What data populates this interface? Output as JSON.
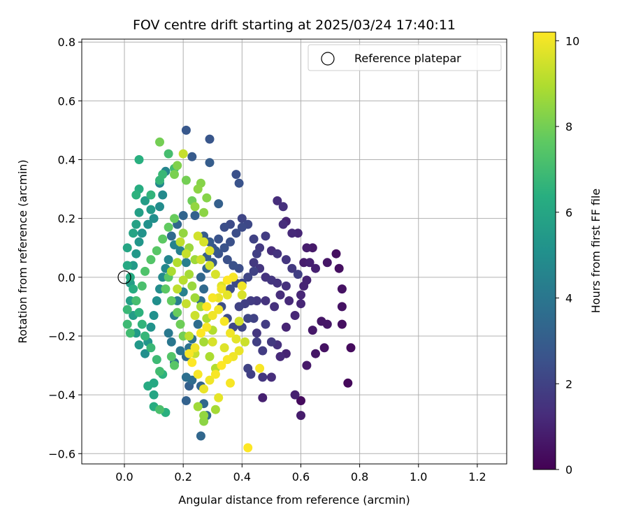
{
  "chart_data": {
    "type": "scatter",
    "title": "FOV centre drift starting at 2025/03/24 17:40:11",
    "xlabel": "Angular distance from reference (arcmin)",
    "ylabel": "Rotation from reference (arcmin)",
    "xlim": [
      -0.145,
      1.3
    ],
    "ylim": [
      -0.635,
      0.81
    ],
    "xticks": [
      0.0,
      0.2,
      0.4,
      0.6,
      0.8,
      1.0,
      1.2
    ],
    "yticks": [
      -0.6,
      -0.4,
      -0.2,
      0.0,
      0.2,
      0.4,
      0.6,
      0.8
    ],
    "grid": true,
    "colormap": "viridis",
    "colorbar": {
      "label": "Hours from first FF file",
      "range": [
        0,
        10.2
      ],
      "ticks": [
        0,
        2,
        4,
        6,
        8,
        10
      ]
    },
    "legend": {
      "placement": "top-right",
      "entries": [
        {
          "label": "Reference platepar",
          "marker": "open-circle"
        }
      ]
    },
    "reference_point": {
      "x": 0.0,
      "y": 0.0
    },
    "columns": [
      "x",
      "y",
      "hours"
    ],
    "points": [
      [
        0.76,
        -0.36,
        0.2
      ],
      [
        0.77,
        -0.24,
        0.3
      ],
      [
        0.72,
        0.08,
        0.4
      ],
      [
        0.73,
        0.03,
        0.4
      ],
      [
        0.74,
        -0.04,
        0.5
      ],
      [
        0.74,
        -0.1,
        0.5
      ],
      [
        0.74,
        -0.16,
        0.4
      ],
      [
        0.68,
        -0.24,
        0.5
      ],
      [
        0.69,
        -0.16,
        0.6
      ],
      [
        0.67,
        -0.15,
        0.6
      ],
      [
        0.69,
        0.05,
        0.6
      ],
      [
        0.65,
        -0.26,
        0.6
      ],
      [
        0.64,
        -0.18,
        0.7
      ],
      [
        0.62,
        -0.3,
        0.7
      ],
      [
        0.6,
        -0.42,
        0.3
      ],
      [
        0.6,
        -0.47,
        0.8
      ],
      [
        0.58,
        -0.4,
        0.9
      ],
      [
        0.64,
        0.1,
        0.7
      ],
      [
        0.62,
        0.1,
        0.8
      ],
      [
        0.61,
        0.05,
        0.8
      ],
      [
        0.63,
        0.05,
        0.9
      ],
      [
        0.65,
        0.03,
        0.9
      ],
      [
        0.62,
        -0.01,
        1.0
      ],
      [
        0.61,
        -0.03,
        1.0
      ],
      [
        0.6,
        -0.06,
        1.1
      ],
      [
        0.6,
        -0.09,
        1.1
      ],
      [
        0.59,
        0.15,
        1.1
      ],
      [
        0.57,
        0.15,
        1.2
      ],
      [
        0.55,
        0.19,
        1.0
      ],
      [
        0.54,
        0.18,
        1.3
      ],
      [
        0.52,
        0.26,
        1.3
      ],
      [
        0.54,
        0.24,
        1.4
      ],
      [
        0.53,
        -0.27,
        1.2
      ],
      [
        0.55,
        -0.26,
        1.0
      ],
      [
        0.52,
        -0.23,
        1.4
      ],
      [
        0.5,
        -0.34,
        1.3
      ],
      [
        0.47,
        -0.34,
        1.6
      ],
      [
        0.47,
        -0.41,
        0.9
      ],
      [
        0.55,
        -0.17,
        1.0
      ],
      [
        0.58,
        -0.13,
        1.1
      ],
      [
        0.56,
        -0.08,
        1.2
      ],
      [
        0.53,
        -0.06,
        1.3
      ],
      [
        0.55,
        -0.03,
        1.4
      ],
      [
        0.52,
        -0.02,
        1.5
      ],
      [
        0.5,
        -0.01,
        1.6
      ],
      [
        0.48,
        0.0,
        1.5
      ],
      [
        0.46,
        0.03,
        1.6
      ],
      [
        0.44,
        0.05,
        1.7
      ],
      [
        0.46,
        0.1,
        1.7
      ],
      [
        0.48,
        0.14,
        1.8
      ],
      [
        0.5,
        0.09,
        1.3
      ],
      [
        0.52,
        0.08,
        1.5
      ],
      [
        0.55,
        0.06,
        1.6
      ],
      [
        0.57,
        0.03,
        1.7
      ],
      [
        0.59,
        0.01,
        1.9
      ],
      [
        0.51,
        -0.1,
        1.4
      ],
      [
        0.48,
        -0.08,
        1.5
      ],
      [
        0.45,
        -0.08,
        1.7
      ],
      [
        0.43,
        -0.08,
        1.8
      ],
      [
        0.41,
        -0.09,
        1.9
      ],
      [
        0.39,
        -0.1,
        2.0
      ],
      [
        0.45,
        -0.19,
        1.6
      ],
      [
        0.48,
        -0.16,
        1.8
      ],
      [
        0.5,
        -0.22,
        1.7
      ],
      [
        0.47,
        -0.25,
        1.8
      ],
      [
        0.45,
        -0.22,
        1.9
      ],
      [
        0.42,
        -0.31,
        2.0
      ],
      [
        0.43,
        -0.33,
        1.9
      ],
      [
        0.44,
        -0.14,
        2.0
      ],
      [
        0.42,
        -0.14,
        2.1
      ],
      [
        0.4,
        -0.17,
        2.1
      ],
      [
        0.37,
        -0.17,
        2.2
      ],
      [
        0.35,
        -0.14,
        2.3
      ],
      [
        0.33,
        -0.1,
        2.4
      ],
      [
        0.36,
        -0.04,
        2.4
      ],
      [
        0.38,
        -0.02,
        2.3
      ],
      [
        0.4,
        -0.02,
        2.2
      ],
      [
        0.42,
        0.0,
        2.1
      ],
      [
        0.44,
        0.02,
        2.0
      ],
      [
        0.39,
        0.03,
        2.4
      ],
      [
        0.37,
        0.04,
        2.5
      ],
      [
        0.35,
        0.06,
        2.5
      ],
      [
        0.32,
        0.08,
        2.6
      ],
      [
        0.3,
        0.1,
        2.7
      ],
      [
        0.34,
        0.1,
        2.6
      ],
      [
        0.36,
        0.12,
        2.5
      ],
      [
        0.38,
        0.15,
        2.4
      ],
      [
        0.4,
        0.17,
        2.3
      ],
      [
        0.42,
        0.18,
        2.2
      ],
      [
        0.4,
        0.2,
        2.1
      ],
      [
        0.44,
        0.13,
        2.0
      ],
      [
        0.45,
        0.08,
        1.9
      ],
      [
        0.36,
        0.18,
        2.3
      ],
      [
        0.34,
        0.17,
        2.4
      ],
      [
        0.32,
        0.13,
        2.6
      ],
      [
        0.31,
        0.09,
        2.8
      ],
      [
        0.29,
        0.12,
        2.9
      ],
      [
        0.27,
        0.14,
        3.0
      ],
      [
        0.28,
        0.07,
        3.0
      ],
      [
        0.3,
        0.05,
        2.9
      ],
      [
        0.38,
        0.35,
        2.5
      ],
      [
        0.39,
        0.32,
        2.6
      ],
      [
        0.29,
        0.47,
        2.7
      ],
      [
        0.21,
        0.5,
        2.8
      ],
      [
        0.23,
        0.41,
        2.9
      ],
      [
        0.29,
        0.39,
        3.0
      ],
      [
        0.32,
        0.25,
        3.1
      ],
      [
        0.24,
        0.21,
        3.2
      ],
      [
        0.2,
        0.21,
        3.3
      ],
      [
        0.18,
        0.18,
        3.4
      ],
      [
        0.16,
        0.14,
        3.5
      ],
      [
        0.28,
        0.03,
        3.3
      ],
      [
        0.26,
        0.0,
        3.4
      ],
      [
        0.27,
        -0.04,
        3.5
      ],
      [
        0.26,
        -0.08,
        3.6
      ],
      [
        0.25,
        -0.16,
        3.6
      ],
      [
        0.23,
        -0.21,
        3.7
      ],
      [
        0.22,
        -0.24,
        3.8
      ],
      [
        0.21,
        -0.27,
        3.5
      ],
      [
        0.19,
        -0.25,
        3.9
      ],
      [
        0.22,
        -0.37,
        3.1
      ],
      [
        0.21,
        -0.42,
        3.2
      ],
      [
        0.26,
        -0.37,
        3.3
      ],
      [
        0.27,
        -0.43,
        3.4
      ],
      [
        0.26,
        -0.54,
        3.4
      ],
      [
        0.28,
        -0.47,
        3.5
      ],
      [
        0.23,
        -0.35,
        3.6
      ],
      [
        0.21,
        -0.34,
        3.7
      ],
      [
        0.17,
        -0.29,
        3.8
      ],
      [
        0.16,
        -0.22,
        4.0
      ],
      [
        0.15,
        -0.19,
        4.1
      ],
      [
        0.17,
        -0.13,
        4.2
      ],
      [
        0.18,
        -0.08,
        4.3
      ],
      [
        0.2,
        -0.05,
        4.4
      ],
      [
        0.21,
        0.05,
        4.3
      ],
      [
        0.19,
        0.09,
        4.4
      ],
      [
        0.17,
        0.11,
        4.5
      ],
      [
        0.15,
        0.06,
        4.6
      ],
      [
        0.14,
        0.03,
        4.7
      ],
      [
        0.13,
        0.0,
        4.8
      ],
      [
        0.12,
        -0.04,
        4.9
      ],
      [
        0.11,
        -0.08,
        5.0
      ],
      [
        0.1,
        -0.13,
        5.1
      ],
      [
        0.09,
        -0.17,
        5.2
      ],
      [
        0.08,
        -0.22,
        5.3
      ],
      [
        0.07,
        -0.26,
        5.0
      ],
      [
        0.05,
        -0.23,
        5.4
      ],
      [
        0.04,
        -0.19,
        5.5
      ],
      [
        0.03,
        -0.13,
        5.6
      ],
      [
        0.02,
        -0.08,
        5.7
      ],
      [
        0.02,
        -0.02,
        5.6
      ],
      [
        0.03,
        0.04,
        5.5
      ],
      [
        0.04,
        0.08,
        5.4
      ],
      [
        0.05,
        0.12,
        5.3
      ],
      [
        0.06,
        0.15,
        5.2
      ],
      [
        0.08,
        0.18,
        5.1
      ],
      [
        0.1,
        0.2,
        5.0
      ],
      [
        0.12,
        0.24,
        4.9
      ],
      [
        0.13,
        0.28,
        4.8
      ],
      [
        0.12,
        0.32,
        4.7
      ],
      [
        0.14,
        0.36,
        4.6
      ],
      [
        0.09,
        0.23,
        5.5
      ],
      [
        0.07,
        0.26,
        5.6
      ],
      [
        0.05,
        0.22,
        5.7
      ],
      [
        0.04,
        0.18,
        5.8
      ],
      [
        0.03,
        0.15,
        5.9
      ],
      [
        0.01,
        0.1,
        6.0
      ],
      [
        0.01,
        0.04,
        6.1
      ],
      [
        0.02,
        0.0,
        6.2
      ],
      [
        0.03,
        -0.04,
        6.3
      ],
      [
        0.04,
        -0.08,
        6.4
      ],
      [
        0.05,
        -0.12,
        6.5
      ],
      [
        0.06,
        -0.16,
        6.6
      ],
      [
        0.07,
        -0.2,
        6.7
      ],
      [
        0.09,
        -0.24,
        6.8
      ],
      [
        0.11,
        -0.28,
        6.9
      ],
      [
        0.12,
        -0.32,
        7.0
      ],
      [
        0.1,
        -0.36,
        6.1
      ],
      [
        0.08,
        -0.37,
        6.2
      ],
      [
        0.1,
        -0.4,
        6.0
      ],
      [
        0.1,
        -0.44,
        6.3
      ],
      [
        0.14,
        -0.46,
        6.4
      ],
      [
        0.13,
        -0.33,
        6.5
      ],
      [
        0.05,
        0.4,
        6.4
      ],
      [
        0.05,
        0.3,
        6.3
      ],
      [
        0.04,
        0.28,
        6.5
      ],
      [
        0.09,
        0.28,
        6.6
      ],
      [
        0.12,
        0.33,
        6.7
      ],
      [
        0.13,
        0.35,
        6.8
      ],
      [
        0.15,
        0.42,
        7.1
      ],
      [
        0.17,
        0.37,
        7.0
      ],
      [
        0.01,
        -0.11,
        6.8
      ],
      [
        0.01,
        -0.16,
        6.9
      ],
      [
        0.02,
        -0.19,
        7.0
      ],
      [
        0.04,
        -0.08,
        7.1
      ],
      [
        0.06,
        -0.03,
        7.2
      ],
      [
        0.07,
        0.02,
        7.3
      ],
      [
        0.09,
        0.06,
        7.4
      ],
      [
        0.11,
        0.09,
        7.5
      ],
      [
        0.13,
        0.13,
        7.6
      ],
      [
        0.15,
        0.17,
        7.7
      ],
      [
        0.17,
        0.2,
        7.8
      ],
      [
        0.15,
        0.0,
        7.5
      ],
      [
        0.14,
        -0.04,
        7.6
      ],
      [
        0.16,
        -0.08,
        7.7
      ],
      [
        0.18,
        -0.12,
        7.8
      ],
      [
        0.19,
        -0.16,
        7.9
      ],
      [
        0.2,
        -0.2,
        8.0
      ],
      [
        0.16,
        -0.27,
        7.4
      ],
      [
        0.17,
        -0.3,
        7.5
      ],
      [
        0.12,
        -0.45,
        7.2
      ],
      [
        0.23,
        0.26,
        7.9
      ],
      [
        0.21,
        0.33,
        8.0
      ],
      [
        0.17,
        0.35,
        8.1
      ],
      [
        0.18,
        0.38,
        8.2
      ],
      [
        0.12,
        0.46,
        8.0
      ],
      [
        0.26,
        0.32,
        8.3
      ],
      [
        0.25,
        0.3,
        8.4
      ],
      [
        0.24,
        0.24,
        8.5
      ],
      [
        0.27,
        0.22,
        8.4
      ],
      [
        0.28,
        0.27,
        8.3
      ],
      [
        0.2,
        0.15,
        8.5
      ],
      [
        0.22,
        0.1,
        8.6
      ],
      [
        0.24,
        0.06,
        8.7
      ],
      [
        0.22,
        0.01,
        8.8
      ],
      [
        0.23,
        -0.03,
        8.6
      ],
      [
        0.24,
        -0.07,
        8.7
      ],
      [
        0.26,
        -0.1,
        8.8
      ],
      [
        0.28,
        -0.14,
        8.9
      ],
      [
        0.3,
        -0.18,
        9.0
      ],
      [
        0.27,
        -0.22,
        8.8
      ],
      [
        0.29,
        -0.27,
        8.9
      ],
      [
        0.31,
        -0.31,
        9.0
      ],
      [
        0.27,
        -0.47,
        8.5
      ],
      [
        0.25,
        -0.44,
        8.7
      ],
      [
        0.31,
        -0.45,
        8.8
      ],
      [
        0.27,
        -0.49,
        8.4
      ],
      [
        0.22,
        -0.2,
        9.2
      ],
      [
        0.24,
        -0.26,
        9.3
      ],
      [
        0.2,
        0.42,
        9.3
      ],
      [
        0.19,
        0.12,
        9.2
      ],
      [
        0.21,
        0.08,
        9.3
      ],
      [
        0.26,
        0.06,
        9.4
      ],
      [
        0.29,
        0.04,
        9.5
      ],
      [
        0.31,
        0.01,
        9.6
      ],
      [
        0.33,
        -0.03,
        9.7
      ],
      [
        0.35,
        -0.06,
        9.8
      ],
      [
        0.32,
        -0.07,
        9.9
      ],
      [
        0.32,
        -0.11,
        10.0
      ],
      [
        0.34,
        -0.15,
        10.1
      ],
      [
        0.36,
        -0.19,
        10.0
      ],
      [
        0.38,
        -0.21,
        9.8
      ],
      [
        0.39,
        -0.25,
        9.9
      ],
      [
        0.37,
        -0.27,
        10.0
      ],
      [
        0.35,
        -0.28,
        10.1
      ],
      [
        0.33,
        -0.3,
        10.2
      ],
      [
        0.31,
        -0.33,
        10.1
      ],
      [
        0.29,
        -0.35,
        10.0
      ],
      [
        0.27,
        -0.38,
        9.9
      ],
      [
        0.32,
        -0.41,
        9.8
      ],
      [
        0.36,
        -0.36,
        10.1
      ],
      [
        0.42,
        -0.58,
        10.2
      ],
      [
        0.46,
        -0.31,
        10.1
      ],
      [
        0.4,
        -0.03,
        10.0
      ],
      [
        0.37,
        0.0,
        10.1
      ],
      [
        0.35,
        -0.01,
        10.2
      ],
      [
        0.33,
        -0.04,
        10.0
      ],
      [
        0.3,
        -0.07,
        10.1
      ],
      [
        0.28,
        -0.1,
        10.2
      ],
      [
        0.3,
        -0.13,
        10.0
      ],
      [
        0.28,
        -0.17,
        10.1
      ],
      [
        0.26,
        -0.19,
        10.2
      ],
      [
        0.24,
        -0.24,
        10.0
      ],
      [
        0.22,
        -0.26,
        10.1
      ],
      [
        0.23,
        -0.29,
        10.2
      ],
      [
        0.25,
        -0.33,
        10.1
      ],
      [
        0.29,
        0.09,
        9.7
      ],
      [
        0.27,
        0.12,
        9.6
      ],
      [
        0.25,
        0.14,
        9.5
      ],
      [
        0.3,
        -0.22,
        9.6
      ],
      [
        0.34,
        -0.24,
        9.7
      ],
      [
        0.41,
        -0.22,
        9.4
      ],
      [
        0.39,
        -0.15,
        9.5
      ],
      [
        0.4,
        -0.06,
        9.6
      ],
      [
        0.18,
        0.05,
        9.0
      ],
      [
        0.16,
        0.02,
        8.9
      ],
      [
        0.2,
        -0.01,
        9.1
      ],
      [
        0.18,
        -0.04,
        9.2
      ],
      [
        0.21,
        -0.09,
        9.3
      ],
      [
        0.24,
        -0.13,
        9.4
      ]
    ]
  }
}
